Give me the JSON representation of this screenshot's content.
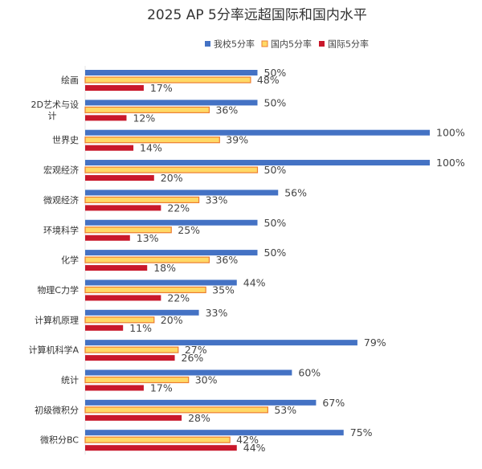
{
  "chart_data": {
    "type": "bar",
    "orientation": "horizontal",
    "title": "2025 AP 5分率远超国际和国内水平",
    "xlabel": "",
    "ylabel": "",
    "xlim": [
      0,
      100
    ],
    "grid": false,
    "legend_position": "top-right",
    "categories": [
      "绘画",
      "2D艺术与设计",
      "世界史",
      "宏观经济",
      "微观经济",
      "环境科学",
      "化学",
      "物理C力学",
      "计算机原理",
      "计算机科学A",
      "统计",
      "初级微积分",
      "微积分BC"
    ],
    "category_display": [
      [
        "绘画"
      ],
      [
        "2D艺术与设",
        "计"
      ],
      [
        "世界史"
      ],
      [
        "宏观经济"
      ],
      [
        "微观经济"
      ],
      [
        "环境科学"
      ],
      [
        "化学"
      ],
      [
        "物理C力学"
      ],
      [
        "计算机原理"
      ],
      [
        "计算机科学A"
      ],
      [
        "统计"
      ],
      [
        "初级微积分"
      ],
      [
        "微积分BC"
      ]
    ],
    "series": [
      {
        "name": "我校5分率",
        "color": "#4472C4",
        "values": [
          50,
          50,
          100,
          100,
          56,
          50,
          50,
          44,
          33,
          79,
          60,
          67,
          75
        ]
      },
      {
        "name": "国内5分率",
        "color": "#FFD966",
        "stroke": "#ED7D31",
        "values": [
          48,
          36,
          39,
          50,
          33,
          25,
          36,
          35,
          20,
          27,
          30,
          53,
          42
        ]
      },
      {
        "name": "国际5分率",
        "color": "#C9182B",
        "values": [
          17,
          12,
          14,
          20,
          22,
          13,
          18,
          22,
          11,
          26,
          17,
          28,
          44
        ]
      }
    ],
    "value_suffix": "%"
  }
}
